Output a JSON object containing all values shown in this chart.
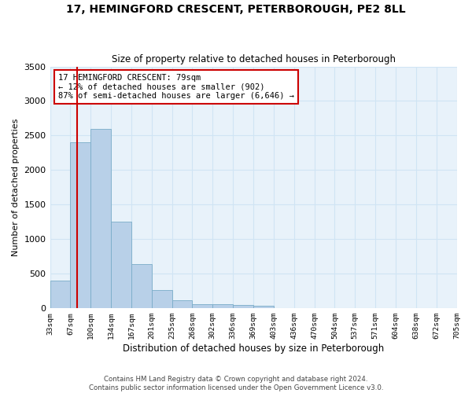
{
  "title": "17, HEMINGFORD CRESCENT, PETERBOROUGH, PE2 8LL",
  "subtitle": "Size of property relative to detached houses in Peterborough",
  "xlabel": "Distribution of detached houses by size in Peterborough",
  "ylabel": "Number of detached properties",
  "footer_line1": "Contains HM Land Registry data © Crown copyright and database right 2024.",
  "footer_line2": "Contains public sector information licensed under the Open Government Licence v3.0.",
  "bin_labels": [
    "33sqm",
    "67sqm",
    "100sqm",
    "134sqm",
    "167sqm",
    "201sqm",
    "235sqm",
    "268sqm",
    "302sqm",
    "336sqm",
    "369sqm",
    "403sqm",
    "436sqm",
    "470sqm",
    "504sqm",
    "537sqm",
    "571sqm",
    "604sqm",
    "638sqm",
    "672sqm",
    "705sqm"
  ],
  "n_bins": 20,
  "bar_values": [
    400,
    2400,
    2600,
    1250,
    640,
    260,
    110,
    60,
    55,
    45,
    30,
    0,
    0,
    0,
    0,
    0,
    0,
    0,
    0,
    0
  ],
  "bar_color": "#b8d0e8",
  "bar_edge_color": "#7aacc8",
  "grid_color": "#d0e4f4",
  "background_color": "#e8f2fa",
  "property_bin_index": 1,
  "property_line_x": 1.35,
  "property_line_color": "#cc0000",
  "annotation_line1": "17 HEMINGFORD CRESCENT: 79sqm",
  "annotation_line2": "← 12% of detached houses are smaller (902)",
  "annotation_line3": "87% of semi-detached houses are larger (6,646) →",
  "annotation_box_color": "#cc0000",
  "ylim": [
    0,
    3500
  ],
  "yticks": [
    0,
    500,
    1000,
    1500,
    2000,
    2500,
    3000,
    3500
  ]
}
